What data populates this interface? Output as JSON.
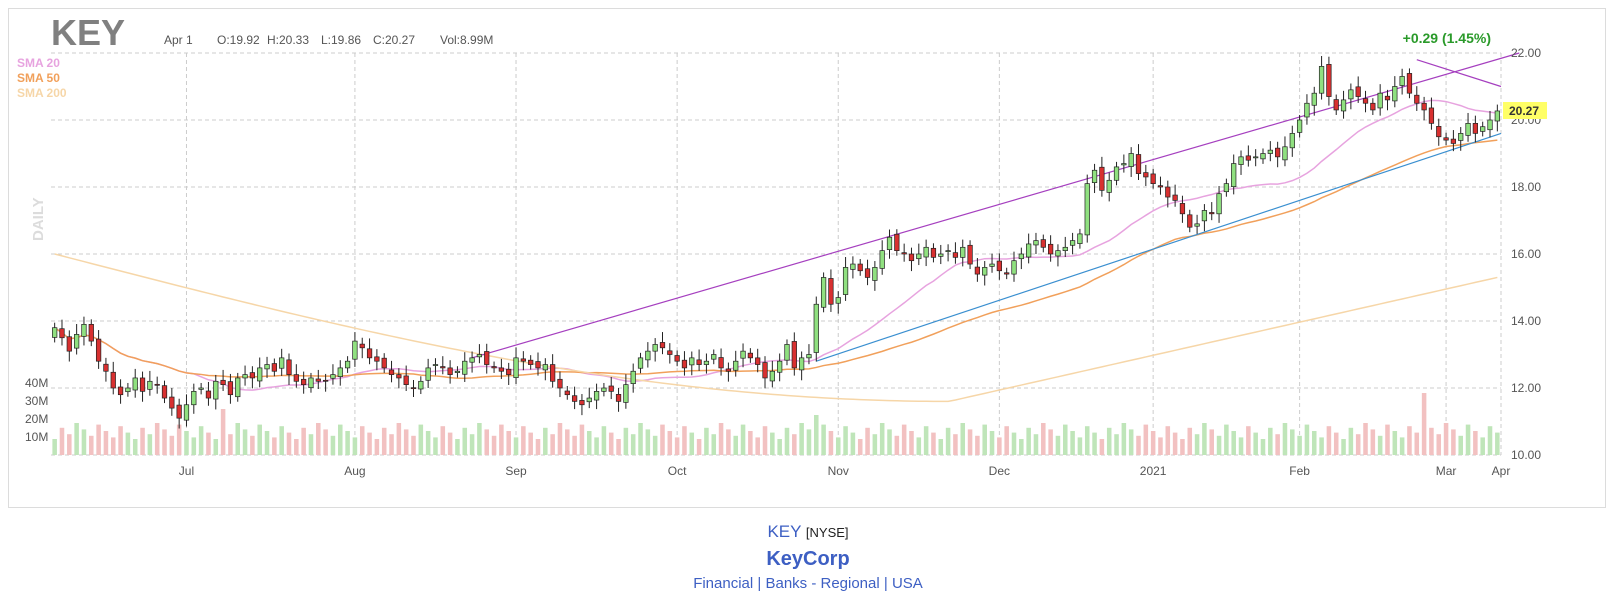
{
  "header": {
    "ticker": "KEY",
    "date": "Apr 1",
    "open": "O:19.92",
    "high": "H:20.33",
    "low": "L:19.86",
    "close": "C:20.27",
    "volume": "Vol:8.99M",
    "change": "+0.29 (1.45%)",
    "last_price_tag": "20.27",
    "period_label": "DAILY"
  },
  "legend": [
    {
      "label": "SMA 20",
      "color": "#e7a3df"
    },
    {
      "label": "SMA 50",
      "color": "#f1a05b"
    },
    {
      "label": "SMA 200",
      "color": "#f6d6a8"
    }
  ],
  "colors": {
    "up": "#90e080",
    "down": "#d83030",
    "vol_up": "#bfe5b9",
    "vol_down": "#f2c1c1",
    "channel": "#a53fbf",
    "trend_support": "#3a8fd0",
    "change": "#2a9a2a",
    "grid": "#cccccc"
  },
  "footer": {
    "symbol": "KEY",
    "exchange": "[NYSE]",
    "company": "KeyCorp",
    "sector": "Financial",
    "industry": "Banks - Regional",
    "country": "USA",
    "sep": "|"
  },
  "chart_data": {
    "type": "candlestick",
    "price_ylim": [
      10,
      22
    ],
    "price_ticks": [
      "22.00",
      "20.00",
      "18.00",
      "16.00",
      "14.00",
      "12.00",
      "10.00"
    ],
    "volume_ticks": [
      "40M",
      "30M",
      "20M",
      "10M"
    ],
    "x_ticks": [
      "Jul",
      "Aug",
      "Sep",
      "Oct",
      "Nov",
      "Dec",
      "2021",
      "Feb",
      "Mar",
      "Apr"
    ],
    "closes": [
      13.8,
      13.5,
      13.1,
      13.6,
      13.9,
      13.4,
      12.8,
      12.5,
      12.0,
      11.8,
      12.0,
      12.3,
      11.9,
      12.2,
      12.1,
      11.7,
      11.4,
      11.1,
      11.5,
      11.9,
      12.0,
      11.7,
      12.2,
      12.1,
      11.8,
      12.3,
      12.4,
      12.3,
      12.6,
      12.7,
      12.5,
      12.9,
      12.4,
      12.2,
      12.1,
      12.3,
      12.2,
      12.2,
      12.4,
      12.6,
      12.8,
      13.4,
      13.2,
      12.9,
      12.8,
      12.6,
      12.4,
      12.3,
      12.1,
      12.0,
      12.2,
      12.6,
      12.7,
      12.6,
      12.4,
      12.5,
      12.8,
      12.9,
      13.0,
      12.7,
      12.6,
      12.5,
      12.4,
      12.9,
      12.8,
      12.7,
      12.6,
      12.7,
      12.2,
      12.0,
      11.8,
      11.6,
      11.5,
      11.7,
      11.9,
      12.0,
      11.9,
      11.6,
      12.1,
      12.5,
      12.9,
      13.1,
      13.3,
      13.2,
      13.0,
      12.8,
      12.6,
      12.9,
      12.7,
      12.8,
      13.0,
      12.6,
      12.5,
      12.8,
      13.1,
      12.9,
      12.7,
      12.3,
      12.5,
      12.8,
      13.3,
      12.6,
      12.9,
      13.0,
      14.5,
      15.3,
      14.5,
      14.7,
      15.6,
      15.7,
      15.5,
      15.3,
      15.6,
      16.1,
      16.5,
      16.1,
      16.0,
      15.8,
      16.0,
      16.2,
      15.9,
      16.0,
      16.1,
      15.9,
      16.2,
      15.7,
      15.4,
      15.6,
      15.7,
      15.5,
      15.4,
      15.8,
      16.0,
      16.3,
      16.4,
      16.2,
      16.0,
      16.1,
      16.2,
      16.4,
      16.6,
      18.1,
      18.5,
      17.9,
      18.2,
      18.6,
      18.7,
      19.0,
      18.4,
      18.3,
      18.1,
      18.0,
      17.7,
      17.6,
      17.2,
      16.8,
      16.9,
      17.3,
      17.2,
      17.8,
      18.1,
      18.7,
      18.9,
      18.8,
      18.9,
      19.0,
      19.1,
      18.9,
      19.2,
      19.6,
      20.0,
      20.5,
      20.8,
      21.6,
      20.7,
      20.3,
      20.6,
      20.9,
      20.7,
      20.5,
      20.3,
      20.8,
      20.6,
      21.0,
      21.3,
      20.8,
      20.5,
      20.3,
      19.9,
      19.5,
      19.4,
      19.3,
      19.6,
      19.9,
      19.6,
      19.8,
      20.0,
      20.27
    ],
    "highs_lows_note": "approximate OHLC derived from closes"
  }
}
